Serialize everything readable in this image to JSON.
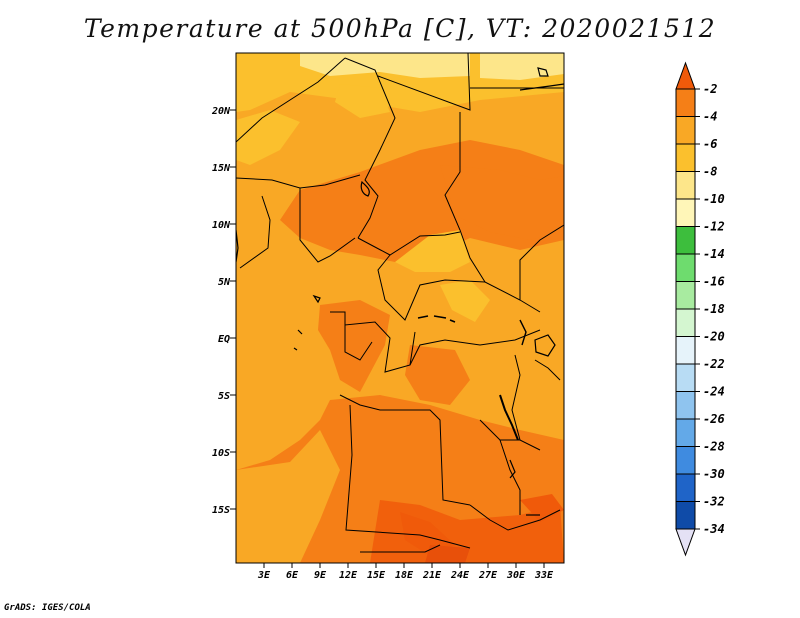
{
  "title": "Temperature at 500hPa [C], VT: 2020021512",
  "credit": "GrADS: IGES/COLA",
  "map": {
    "lat_labels": [
      "20N",
      "15N",
      "10N",
      "5N",
      "EQ",
      "5S",
      "10S",
      "15S"
    ],
    "lon_labels": [
      "3E",
      "6E",
      "9E",
      "12E",
      "15E",
      "18E",
      "21E",
      "24E",
      "27E",
      "30E",
      "33E"
    ]
  },
  "colorbar": {
    "labels": [
      "-2",
      "-4",
      "-6",
      "-8",
      "-10",
      "-12",
      "-14",
      "-16",
      "-18",
      "-20",
      "-22",
      "-24",
      "-26",
      "-28",
      "-30",
      "-32",
      "-34"
    ],
    "colors": [
      "#F05A0A",
      "#F57F17",
      "#F9A825",
      "#FBC02D",
      "#FDE68A",
      "#FFF6B8",
      "#3DBE3D",
      "#6EDC6E",
      "#A8EBA0",
      "#D4F6D0",
      "#E6F3FA",
      "#B8DCF4",
      "#8FC4EF",
      "#63A9E8",
      "#3F8BE0",
      "#1F64C8",
      "#0F4BA8",
      "#0A1F78",
      "#E4E1F5"
    ]
  },
  "field_colors": {
    "warm_m2": "#F05A0A",
    "m4": "#F57F17",
    "m6": "#F9A825",
    "m8": "#FBC02D",
    "m10": "#FDE68A"
  }
}
